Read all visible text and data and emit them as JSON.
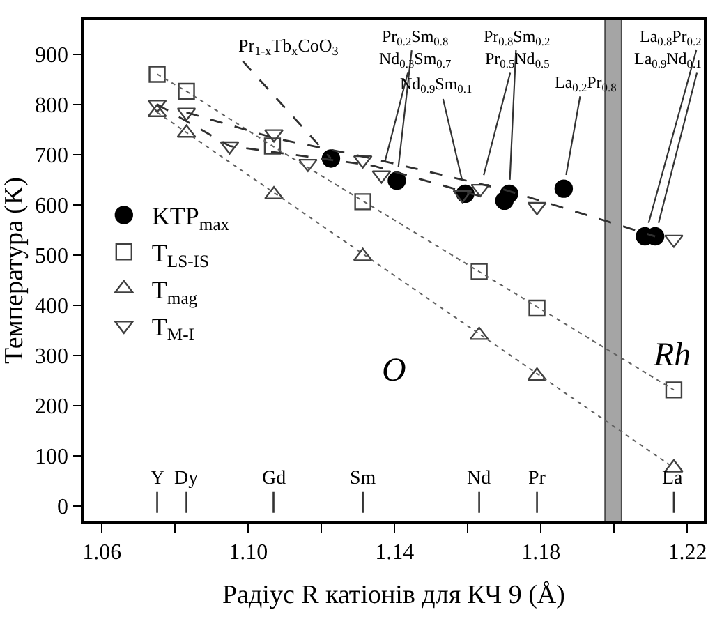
{
  "chart_data": {
    "type": "scatter",
    "xlabel": "Радіус R катіонів для КЧ 9 (Å)",
    "ylabel": "Температура (K)",
    "xlim": [
      1.055,
      1.2245
    ],
    "ylim": [
      -31,
      969
    ],
    "xticks": [
      1.06,
      {
        "value": 1.08,
        "label": null
      },
      {
        "value": 1.1,
        "label": "1.10"
      },
      {
        "value": 1.12,
        "label": null
      },
      1.14,
      {
        "value": 1.16,
        "label": null
      },
      1.18,
      {
        "value": 1.2,
        "label": null
      },
      1.22
    ],
    "yticks": [
      0,
      100,
      200,
      300,
      400,
      500,
      600,
      700,
      800,
      900
    ],
    "grid": false,
    "legend": "left",
    "series": [
      {
        "name": "KTP$_{max}$",
        "color": "#000000",
        "marker": "circle",
        "x": [
          1.1226,
          1.1406,
          1.1593,
          1.17,
          1.1713,
          1.1862,
          1.2084,
          1.2112
        ],
        "values": [
          692,
          648,
          622,
          608,
          622,
          632,
          537,
          537
        ]
      },
      {
        "name": "T$_{LS-IS}$",
        "color": "#404040",
        "marker": "square",
        "x": [
          1.0751,
          1.0831,
          1.1066,
          1.1313,
          1.1631,
          1.1789,
          1.2163
        ],
        "values": [
          860,
          826,
          717,
          606,
          467,
          394,
          231
        ]
      },
      {
        "name": "T$_{mag}$",
        "color": "#404040",
        "marker": "triangle",
        "x": [
          1.0751,
          1.0831,
          1.107,
          1.1313,
          1.1631,
          1.1789,
          1.2163
        ],
        "values": [
          784,
          743,
          620,
          497,
          340,
          259,
          76
        ]
      },
      {
        "name": "T$_{M-I}$",
        "color": "#404040",
        "marker": "triangle-down",
        "x": [
          1.0751,
          1.0831,
          1.0949,
          1.107,
          1.1163,
          1.1313,
          1.1364,
          1.1585,
          1.1634,
          1.1789,
          1.2163
        ],
        "values": [
          800,
          784,
          717,
          741,
          682,
          689,
          659,
          620,
          632,
          596,
          531
        ]
      },
      {
        "type": "line",
        "color": "#606060",
        "line_style": "dotted",
        "marker": "none",
        "x": [
          1.0751,
          1.0831,
          1.1066,
          1.2163
        ],
        "values": [
          860,
          826,
          717,
          231
        ]
      },
      {
        "type": "line",
        "color": "#606060",
        "line_style": "dotted",
        "marker": "none",
        "x": [
          1.0751,
          1.2163
        ],
        "values": [
          784,
          76
        ]
      },
      {
        "type": "line",
        "color": "#303030",
        "line_style": "dashed",
        "marker": "none",
        "x": [
          1.0751,
          1.0949,
          1.134,
          1.1634
        ],
        "values": [
          800,
          717,
          678,
          617
        ]
      },
      {
        "type": "line",
        "color": "#303030",
        "line_style": "dashed",
        "marker": "none",
        "x": [
          1.0831,
          1.107,
          1.134,
          1.17,
          1.198,
          1.2112
        ],
        "values": [
          784,
          733,
          692,
          630,
          567,
          537
        ]
      },
      {
        "type": "line",
        "color": "#303030",
        "line_style": "dashed",
        "marker": "none",
        "x": [
          1.0985,
          1.1226
        ],
        "values": [
          886,
          692
        ]
      }
    ],
    "bands": [
      {
        "axis": "x",
        "from": 1.1975,
        "to": 1.202,
        "color": "#808080"
      }
    ],
    "annotations": [
      "Pr$_{1-x}$Tb$_{x}$CoO$_{3}$",
      {
        "text": "Pr$_{0.2}$Sm$_{0.8}$",
        "x": 1.1406,
        "y": 648
      },
      {
        "text": "Nd$_{0.3}$Sm$_{0.7}$",
        "x": 1.1364,
        "y": 659
      },
      {
        "text": "Nd$_{0.9}$Sm$_{0.1}$",
        "x": 1.1593,
        "y": 622
      },
      {
        "text": "Pr$_{0.8}$Sm$_{0.2}$",
        "x": 1.1713,
        "y": 622
      },
      {
        "text": "Pr$_{0.5}$Nd$_{0.5}$",
        "x": 1.1634,
        "y": 632
      },
      {
        "text": "La$_{0.2}$Pr$_{0.8}$",
        "x": 1.1862,
        "y": 632
      },
      {
        "text": "La$_{0.8}$Pr$_{0.2}$",
        "x": 1.2084,
        "y": 537
      },
      {
        "text": "La$_{0.9}$Nd$_{0.1}$",
        "x": 1.2112,
        "y": 537
      },
      "O",
      "Rh",
      "Y",
      "Dy",
      "Gd",
      "Sm",
      "Nd",
      "Pr",
      "La"
    ]
  }
}
